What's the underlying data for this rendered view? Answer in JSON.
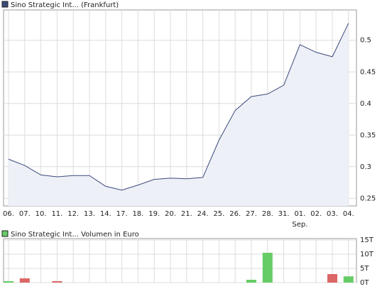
{
  "chart_data": [
    {
      "type": "line",
      "categories": [
        "06.",
        "07.",
        "10.",
        "11.",
        "12.",
        "13.",
        "14.",
        "17.",
        "18.",
        "19.",
        "20.",
        "21.",
        "24.",
        "25.",
        "26.",
        "27.",
        "28.",
        "31.",
        "01.",
        "02.",
        "03.",
        "04."
      ],
      "annotations": [
        {
          "text": "Sep.",
          "x": "01."
        }
      ],
      "series": [
        {
          "name": "Sino Strategic Int... (Frankfurt)",
          "color": "#3a4a7a",
          "fill": "#eef0f8",
          "values": [
            0.312,
            0.302,
            0.287,
            0.284,
            0.286,
            0.286,
            0.269,
            0.263,
            0.271,
            0.28,
            0.282,
            0.281,
            0.283,
            0.342,
            0.389,
            0.411,
            0.415,
            0.429,
            0.493,
            0.481,
            0.474,
            0.527
          ]
        }
      ],
      "ylim": [
        0.238,
        0.548
      ],
      "yticks": [
        0.25,
        0.3,
        0.35,
        0.4,
        0.45,
        0.5
      ],
      "grid": true
    },
    {
      "type": "bar",
      "series": [
        {
          "name": "Sino Strategic Int... Volumen in Euro",
          "color": "#66cc66",
          "values": [
            0.5,
            1.5,
            0,
            0.5,
            0,
            0,
            0,
            0,
            0,
            0,
            0,
            0,
            0,
            0,
            0,
            1,
            10.5,
            0,
            0,
            0,
            3,
            2.2
          ],
          "bar_colors": [
            "#66cc66",
            "#dd6666",
            "#66cc66",
            "#dd6666",
            "#66cc66",
            "#66cc66",
            "#66cc66",
            "#66cc66",
            "#66cc66",
            "#66cc66",
            "#66cc66",
            "#66cc66",
            "#66cc66",
            "#66cc66",
            "#66cc66",
            "#66cc66",
            "#66cc66",
            "#66cc66",
            "#66cc66",
            "#66cc66",
            "#dd6666",
            "#66cc66"
          ]
        }
      ],
      "ylim": [
        0,
        15.5
      ],
      "yticks": [
        {
          "value": 0,
          "label": "0T"
        },
        {
          "value": 5,
          "label": "5T"
        },
        {
          "value": 10,
          "label": "10T"
        },
        {
          "value": 15,
          "label": "15T"
        }
      ],
      "grid": true
    }
  ]
}
